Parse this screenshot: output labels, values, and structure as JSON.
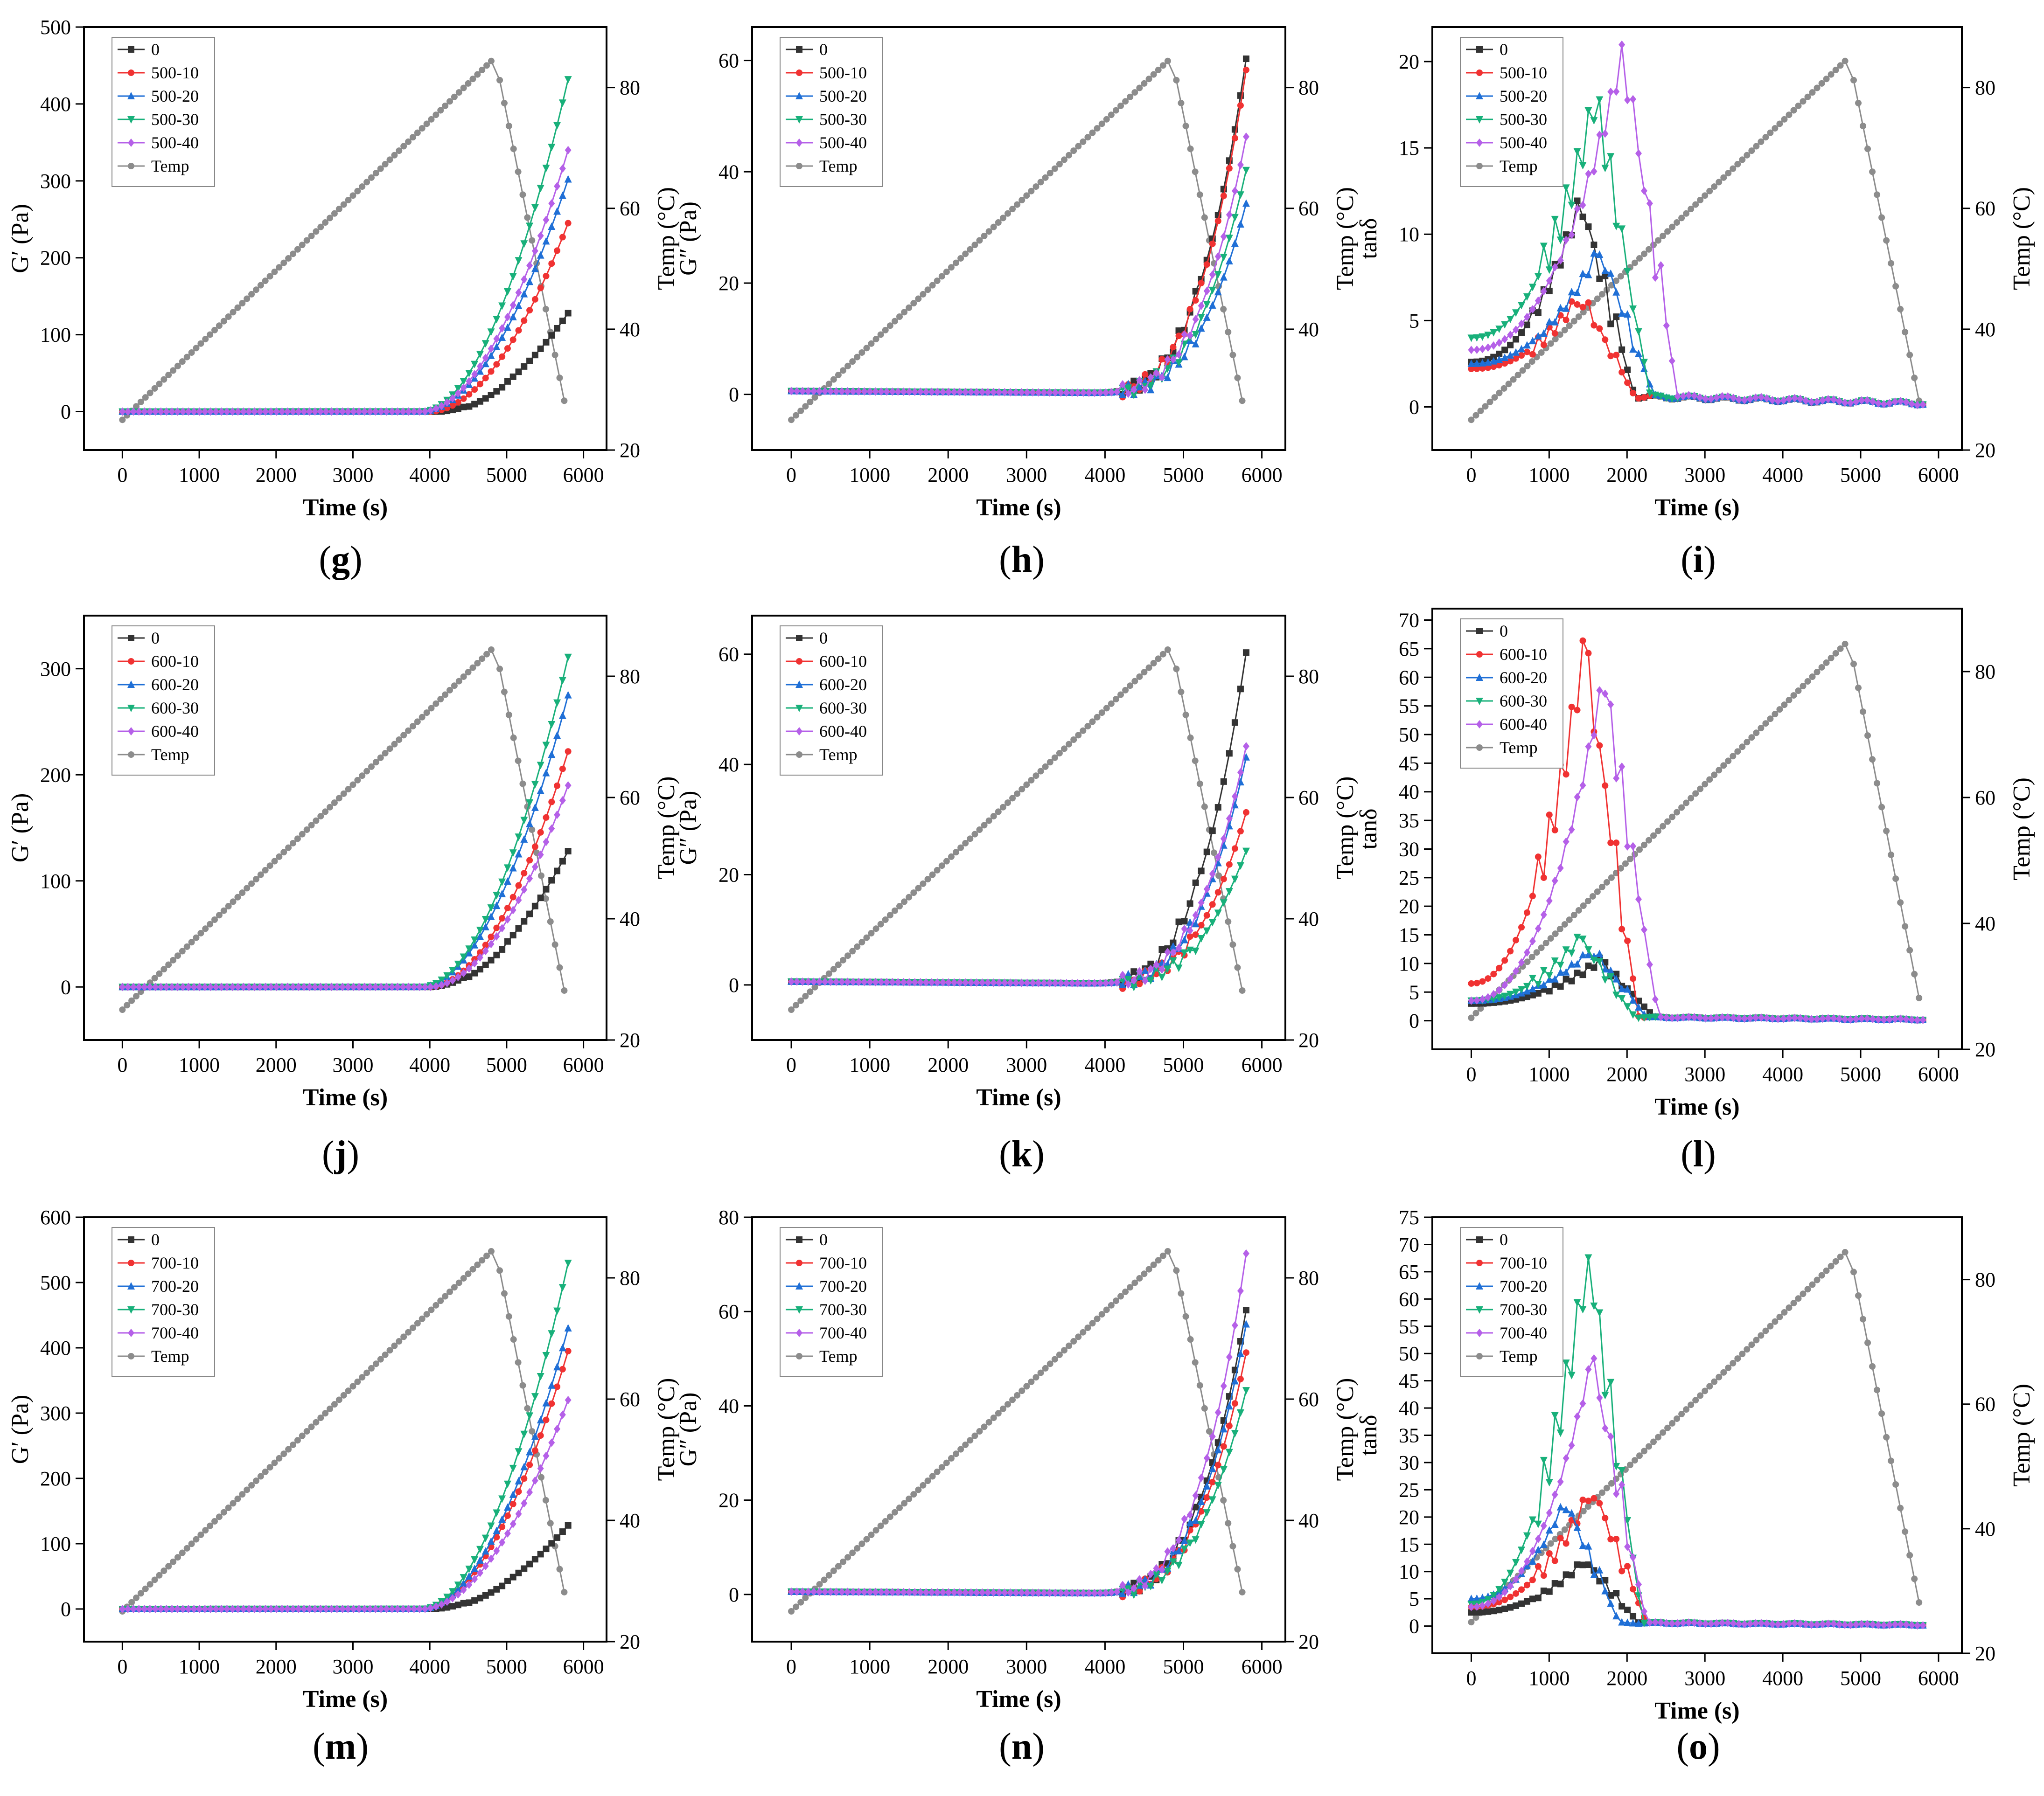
{
  "figure": {
    "colors": {
      "0": "#333333",
      "10": "#f03232",
      "20": "#1f6fd6",
      "30": "#18b07a",
      "40": "#b560e8",
      "temp": "#8c8c8c",
      "axis": "#000000"
    },
    "markers": {
      "0": "square",
      "10": "circle",
      "20": "triangle-up",
      "30": "triangle-down",
      "40": "diamond",
      "temp": "circle"
    }
  },
  "chart_data": [
    {
      "panel": "g",
      "type": "line",
      "metric": "Gp",
      "group": "500",
      "xlabel": "Time (s)",
      "ylabel": "G′ (Pa)",
      "y2label": "Temp (°C)",
      "xlim": [
        -500,
        6300
      ],
      "xticks": [
        0,
        1000,
        2000,
        3000,
        4000,
        5000,
        6000
      ],
      "ylim": [
        -50,
        500
      ],
      "yticks": [
        0,
        100,
        200,
        300,
        400,
        500
      ],
      "y2lim": [
        20,
        90
      ],
      "y2ticks": [
        20,
        40,
        60,
        80
      ],
      "legend": [
        "0",
        "500-10",
        "500-20",
        "500-30",
        "500-40",
        "Temp"
      ],
      "legend_position": "top-left",
      "finals": [
        128,
        245,
        302,
        432,
        340
      ],
      "onset": [
        4100,
        4000,
        3900,
        3900,
        3900
      ],
      "temp_range": [
        25,
        85
      ],
      "temp_peak_time": 4850
    },
    {
      "panel": "h",
      "type": "line",
      "metric": "Gpp",
      "group": "500",
      "xlabel": "Time (s)",
      "ylabel": "G″ (Pa)",
      "y2label": "Temp (°C)",
      "xlim": [
        -500,
        6300
      ],
      "xticks": [
        0,
        1000,
        2000,
        3000,
        4000,
        5000,
        6000
      ],
      "ylim": [
        -10,
        66
      ],
      "yticks": [
        0,
        20,
        40,
        60
      ],
      "y2lim": [
        20,
        90
      ],
      "y2ticks": [
        40,
        60,
        80
      ],
      "legend": [
        "0",
        "500-10",
        "500-20",
        "500-30",
        "500-40",
        "Temp"
      ],
      "legend_position": "top-left",
      "finals": [
        60,
        58,
        34,
        40,
        46
      ],
      "onset": [
        3800,
        3800,
        3800,
        3800,
        3800
      ],
      "temp_range": [
        25,
        85
      ],
      "temp_peak_time": 4850
    },
    {
      "panel": "i",
      "type": "line",
      "metric": "tan",
      "group": "500",
      "xlabel": "Time (s)",
      "ylabel": "tanδ",
      "y2label": "Temp (°C)",
      "xlim": [
        -500,
        6300
      ],
      "xticks": [
        0,
        1000,
        2000,
        3000,
        4000,
        5000,
        6000
      ],
      "ylim": [
        -2.5,
        22
      ],
      "yticks": [
        0,
        5,
        10,
        15,
        20
      ],
      "y2lim": [
        20,
        90
      ],
      "y2ticks": [
        20,
        40,
        60,
        80
      ],
      "legend": [
        "0",
        "500-10",
        "500-20",
        "500-30",
        "500-40",
        "Temp"
      ],
      "legend_position": "top-left",
      "start": [
        2.6,
        2.2,
        2.5,
        4.0,
        3.3
      ],
      "peak": [
        12.0,
        6.5,
        9.2,
        18.0,
        20.6
      ],
      "peak_time": [
        1400,
        1400,
        1650,
        1600,
        1950
      ],
      "temp_range": [
        25,
        85
      ],
      "temp_peak_time": 4850
    },
    {
      "panel": "j",
      "type": "line",
      "metric": "Gp",
      "group": "600",
      "xlabel": "Time (s)",
      "ylabel": "G′ (Pa)",
      "y2label": "Temp (°C)",
      "xlim": [
        -500,
        6300
      ],
      "xticks": [
        0,
        1000,
        2000,
        3000,
        4000,
        5000,
        6000
      ],
      "ylim": [
        -50,
        350
      ],
      "yticks": [
        0,
        100,
        200,
        300
      ],
      "y2lim": [
        20,
        90
      ],
      "y2ticks": [
        20,
        40,
        60,
        80
      ],
      "legend": [
        "0",
        "600-10",
        "600-20",
        "600-30",
        "600-40",
        "Temp"
      ],
      "legend_position": "top-left",
      "finals": [
        128,
        222,
        275,
        311,
        190
      ],
      "onset": [
        4000,
        4000,
        3900,
        3900,
        4000
      ],
      "temp_range": [
        25,
        85
      ],
      "temp_peak_time": 4850
    },
    {
      "panel": "k",
      "type": "line",
      "metric": "Gpp",
      "group": "600",
      "xlabel": "Time (s)",
      "ylabel": "G″ (Pa)",
      "y2label": "Temp (°C)",
      "xlim": [
        -500,
        6300
      ],
      "xticks": [
        0,
        1000,
        2000,
        3000,
        4000,
        5000,
        6000
      ],
      "ylim": [
        -10,
        67
      ],
      "yticks": [
        0,
        20,
        40,
        60
      ],
      "y2lim": [
        20,
        90
      ],
      "y2ticks": [
        20,
        40,
        60,
        80
      ],
      "legend": [
        "0",
        "600-10",
        "600-20",
        "600-30",
        "600-40",
        "Temp"
      ],
      "legend_position": "top-left",
      "finals": [
        60,
        31,
        41,
        24,
        43
      ],
      "onset": [
        3800,
        3800,
        3800,
        3800,
        3800
      ],
      "temp_range": [
        25,
        85
      ],
      "temp_peak_time": 4850
    },
    {
      "panel": "l",
      "type": "line",
      "metric": "tan",
      "group": "600",
      "xlabel": "Time (s)",
      "ylabel": "tanδ",
      "y2label": "Temp (°C)",
      "xlim": [
        -500,
        6300
      ],
      "xticks": [
        0,
        1000,
        2000,
        3000,
        4000,
        5000,
        6000
      ],
      "ylim": [
        -5,
        72
      ],
      "yticks": [
        0,
        5,
        10,
        15,
        20,
        25,
        30,
        35,
        40,
        45,
        50,
        55,
        60,
        65,
        70
      ],
      "y2lim": [
        20,
        90
      ],
      "y2ticks": [
        20,
        40,
        60,
        80
      ],
      "legend": [
        "0",
        "600-10",
        "600-20",
        "600-30",
        "600-40",
        "Temp"
      ],
      "legend_position": "top-left",
      "start": [
        3.0,
        6.5,
        3.5,
        3.5,
        3.5
      ],
      "peak": [
        10.5,
        65.0,
        12.5,
        14.5,
        60.0
      ],
      "peak_time": [
        1650,
        1450,
        1550,
        1400,
        1700
      ],
      "temp_range": [
        25,
        85
      ],
      "temp_peak_time": 4850
    },
    {
      "panel": "m",
      "type": "line",
      "metric": "Gp",
      "group": "700",
      "xlabel": "Time (s)",
      "ylabel": "G′ (Pa)",
      "y2label": "Temp (°C)",
      "xlim": [
        -500,
        6300
      ],
      "xticks": [
        0,
        1000,
        2000,
        3000,
        4000,
        5000,
        6000
      ],
      "ylim": [
        -50,
        600
      ],
      "yticks": [
        0,
        100,
        200,
        300,
        400,
        500,
        600
      ],
      "y2lim": [
        20,
        90
      ],
      "y2ticks": [
        20,
        40,
        60,
        80
      ],
      "legend": [
        "0",
        "700-10",
        "700-20",
        "700-30",
        "700-40",
        "Temp"
      ],
      "legend_position": "top-left",
      "finals": [
        128,
        395,
        430,
        530,
        320
      ],
      "onset": [
        4000,
        3900,
        3900,
        3900,
        3900
      ],
      "temp_range": [
        25,
        85
      ],
      "temp_peak_time": 4850
    },
    {
      "panel": "n",
      "type": "line",
      "metric": "Gpp",
      "group": "700",
      "xlabel": "Time (s)",
      "ylabel": "G″ (Pa)",
      "y2label": "Temp (°C)",
      "xlim": [
        -500,
        6300
      ],
      "xticks": [
        0,
        1000,
        2000,
        3000,
        4000,
        5000,
        6000
      ],
      "ylim": [
        -10,
        80
      ],
      "yticks": [
        0,
        20,
        40,
        60,
        80
      ],
      "y2lim": [
        20,
        90
      ],
      "y2ticks": [
        20,
        40,
        60,
        80
      ],
      "legend": [
        "0",
        "700-10",
        "700-20",
        "700-30",
        "700-40",
        "Temp"
      ],
      "legend_position": "top-left",
      "finals": [
        60,
        51,
        57,
        43,
        72
      ],
      "onset": [
        3800,
        3800,
        3800,
        3800,
        3800
      ],
      "temp_range": [
        25,
        85
      ],
      "temp_peak_time": 4850
    },
    {
      "panel": "o",
      "type": "line",
      "metric": "tan",
      "group": "700",
      "xlabel": "Time (s)",
      "ylabel": "tanδ",
      "y2label": "Temp (°C)",
      "xlim": [
        -500,
        6300
      ],
      "xticks": [
        0,
        1000,
        2000,
        3000,
        4000,
        5000,
        6000
      ],
      "ylim": [
        -5,
        75
      ],
      "yticks": [
        0,
        5,
        10,
        15,
        20,
        25,
        30,
        35,
        40,
        45,
        50,
        55,
        60,
        65,
        70,
        75
      ],
      "y2lim": [
        20,
        90
      ],
      "y2ticks": [
        20,
        40,
        60,
        80
      ],
      "legend": [
        "0",
        "700-10",
        "700-20",
        "700-30",
        "700-40",
        "Temp"
      ],
      "legend_position": "top-left",
      "start": [
        2.5,
        3.5,
        5.0,
        4.0,
        3.5
      ],
      "peak": [
        12.0,
        25.5,
        23.0,
        68.0,
        49.0
      ],
      "peak_time": [
        1450,
        1550,
        1200,
        1500,
        1550
      ],
      "temp_range": [
        25,
        85
      ],
      "temp_peak_time": 4850
    }
  ],
  "labels": {
    "g": "g",
    "h": "h",
    "i": "i",
    "j": "j",
    "k": "k",
    "l": "l",
    "m": "m",
    "n": "n",
    "o": "o"
  }
}
